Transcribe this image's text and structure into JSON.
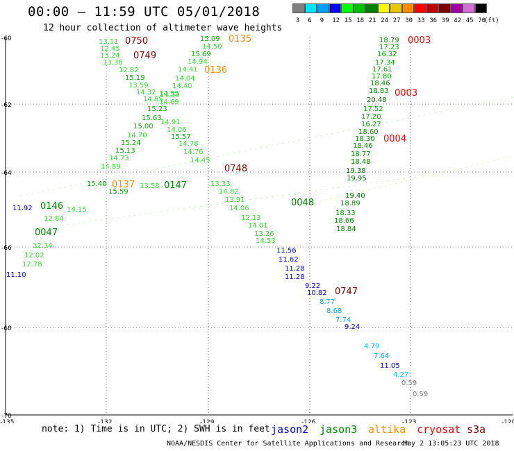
{
  "header": {
    "title": "00:00 — 11:59 UTC 05/01/2018",
    "subtitle": "12 hour collection of altimeter wave heights"
  },
  "legend": {
    "unit": "(ft)",
    "bins": [
      {
        "label": "3",
        "color": "#808080"
      },
      {
        "label": "6",
        "color": "#00e5ff"
      },
      {
        "label": "9",
        "color": "#00a0ff"
      },
      {
        "label": "12",
        "color": "#0000ff"
      },
      {
        "label": "15",
        "color": "#00ff00"
      },
      {
        "label": "18",
        "color": "#00c000"
      },
      {
        "label": "21",
        "color": "#008000"
      },
      {
        "label": "24",
        "color": "#ffff00"
      },
      {
        "label": "27",
        "color": "#e6c800"
      },
      {
        "label": "30",
        "color": "#ff8c00"
      },
      {
        "label": "33",
        "color": "#ff0000"
      },
      {
        "label": "36",
        "color": "#c00000"
      },
      {
        "label": "39",
        "color": "#800000"
      },
      {
        "label": "42",
        "color": "#a000a0"
      },
      {
        "label": "45",
        "color": "#d070d0"
      },
      {
        "label": "70",
        "color": "#000000"
      }
    ]
  },
  "axes": {
    "lat_labels": [
      "-60",
      "-62",
      "-64",
      "-66",
      "-68",
      "-70"
    ],
    "lon_labels": [
      "-135",
      "-132",
      "-129",
      "-126",
      "-123",
      "-120"
    ]
  },
  "tracks": [
    {
      "id": "jason2_a",
      "labels": [
        {
          "t": "11.92",
          "c": "#0000cc"
        },
        {
          "t": "11.10",
          "c": "#0000cc"
        },
        {
          "t": "11.56",
          "c": "#0000cc"
        },
        {
          "t": "11.62",
          "c": "#0000cc"
        },
        {
          "t": "11.28",
          "c": "#0000cc"
        },
        {
          "t": "11.28",
          "c": "#0000cc"
        },
        {
          "t": "9.22",
          "c": "#0000cc"
        },
        {
          "t": "10.82",
          "c": "#0000cc"
        },
        {
          "t": "8.77",
          "c": "#00aaff"
        },
        {
          "t": "8.68",
          "c": "#00aaff"
        },
        {
          "t": "7.74",
          "c": "#00aaff"
        },
        {
          "t": "9.24",
          "c": "#0000cc"
        },
        {
          "t": "4.79",
          "c": "#00ccff"
        },
        {
          "t": "7.64",
          "c": "#00aaff"
        },
        {
          "t": "11.05",
          "c": "#0000cc"
        },
        {
          "t": "4.27",
          "c": "#00ccff"
        },
        {
          "t": "0.59",
          "c": "#808080"
        },
        {
          "t": "0.59",
          "c": "#808080"
        }
      ]
    },
    {
      "id": "green_labels",
      "labels": [
        {
          "t": "13.11",
          "c": "#33dd33"
        },
        {
          "t": "12.45",
          "c": "#33dd33"
        },
        {
          "t": "13.24",
          "c": "#33dd33"
        },
        {
          "t": "13.36",
          "c": "#33dd33"
        },
        {
          "t": "12.82",
          "c": "#33dd33"
        },
        {
          "t": "15.19",
          "c": "#00aa00"
        },
        {
          "t": "13.59",
          "c": "#33dd33"
        },
        {
          "t": "14.32",
          "c": "#33dd33"
        },
        {
          "t": "14.55",
          "c": "#33dd33"
        },
        {
          "t": "14.85",
          "c": "#33dd33"
        },
        {
          "t": "15.23",
          "c": "#00aa00"
        },
        {
          "t": "15.63",
          "c": "#00aa00"
        },
        {
          "t": "15.00",
          "c": "#00aa00"
        },
        {
          "t": "14.70",
          "c": "#33dd33"
        },
        {
          "t": "15.24",
          "c": "#00aa00"
        },
        {
          "t": "15.13",
          "c": "#00aa00"
        },
        {
          "t": "14.73",
          "c": "#33dd33"
        },
        {
          "t": "14.89",
          "c": "#33dd33"
        },
        {
          "t": "15.09",
          "c": "#00aa00"
        },
        {
          "t": "14.50",
          "c": "#33dd33"
        },
        {
          "t": "15.69",
          "c": "#00aa00"
        },
        {
          "t": "14.94",
          "c": "#33dd33"
        },
        {
          "t": "14.41",
          "c": "#33dd33"
        },
        {
          "t": "14.04",
          "c": "#33dd33"
        },
        {
          "t": "14.40",
          "c": "#33dd33"
        },
        {
          "t": "14.59",
          "c": "#33dd33"
        },
        {
          "t": "14.69",
          "c": "#33dd33"
        },
        {
          "t": "14.91",
          "c": "#33dd33"
        },
        {
          "t": "14.06",
          "c": "#33dd33"
        },
        {
          "t": "15.57",
          "c": "#00aa00"
        },
        {
          "t": "14.78",
          "c": "#33dd33"
        },
        {
          "t": "14.76",
          "c": "#33dd33"
        },
        {
          "t": "14.45",
          "c": "#33dd33"
        },
        {
          "t": "13.33",
          "c": "#33dd33"
        },
        {
          "t": "14.82",
          "c": "#33dd33"
        },
        {
          "t": "13.91",
          "c": "#33dd33"
        },
        {
          "t": "14.06",
          "c": "#33dd33"
        },
        {
          "t": "12.13",
          "c": "#33dd33"
        },
        {
          "t": "14.01",
          "c": "#33dd33"
        },
        {
          "t": "13.26",
          "c": "#33dd33"
        },
        {
          "t": "14.53",
          "c": "#33dd33"
        },
        {
          "t": "15.40",
          "c": "#00aa00"
        },
        {
          "t": "15.59",
          "c": "#00aa00"
        },
        {
          "t": "13.58",
          "c": "#33dd33"
        },
        {
          "t": "14.15",
          "c": "#33dd33"
        },
        {
          "t": "12.84",
          "c": "#33dd33"
        },
        {
          "t": "12.34",
          "c": "#33dd33"
        },
        {
          "t": "12.02",
          "c": "#33dd33"
        },
        {
          "t": "12.78",
          "c": "#33dd33"
        }
      ]
    },
    {
      "id": "dark_green_labels",
      "labels": [
        {
          "t": "18.79",
          "c": "#008800"
        },
        {
          "t": "17.23",
          "c": "#00aa00"
        },
        {
          "t": "16.32",
          "c": "#00aa00"
        },
        {
          "t": "17.34",
          "c": "#00aa00"
        },
        {
          "t": "17.61",
          "c": "#00aa00"
        },
        {
          "t": "17.80",
          "c": "#00aa00"
        },
        {
          "t": "18.46",
          "c": "#008800"
        },
        {
          "t": "18.83",
          "c": "#008800"
        },
        {
          "t": "20.48",
          "c": "#006600"
        },
        {
          "t": "17.52",
          "c": "#00aa00"
        },
        {
          "t": "17.20",
          "c": "#00aa00"
        },
        {
          "t": "16.27",
          "c": "#00aa00"
        },
        {
          "t": "18.60",
          "c": "#008800"
        },
        {
          "t": "18.30",
          "c": "#008800"
        },
        {
          "t": "18.46",
          "c": "#008800"
        },
        {
          "t": "18.77",
          "c": "#008800"
        },
        {
          "t": "18.48",
          "c": "#008800"
        },
        {
          "t": "19.95",
          "c": "#006600"
        },
        {
          "t": "19.38",
          "c": "#006600"
        },
        {
          "t": "19.40",
          "c": "#006600"
        },
        {
          "t": "18.89",
          "c": "#008800"
        },
        {
          "t": "18.33",
          "c": "#008800"
        },
        {
          "t": "18.66",
          "c": "#008800"
        },
        {
          "t": "18.84",
          "c": "#008800"
        }
      ]
    },
    {
      "id": "time_labels",
      "labels": [
        {
          "t": "0750",
          "c": "#800000"
        },
        {
          "t": "0749",
          "c": "#800000"
        },
        {
          "t": "0135",
          "c": "#ff8c00"
        },
        {
          "t": "0136",
          "c": "#ff8c00"
        },
        {
          "t": "0003",
          "c": "#ff0000"
        },
        {
          "t": "0003",
          "c": "#ff0000"
        },
        {
          "t": "0004",
          "c": "#ff0000"
        },
        {
          "t": "0748",
          "c": "#800000"
        },
        {
          "t": "0137",
          "c": "#ff8c00"
        },
        {
          "t": "0147",
          "c": "#008800"
        },
        {
          "t": "0146",
          "c": "#008800"
        },
        {
          "t": "0048",
          "c": "#008800"
        },
        {
          "t": "0047",
          "c": "#008800"
        },
        {
          "t": "0747",
          "c": "#800000"
        }
      ]
    }
  ],
  "footer": {
    "note": "note: 1) Time is in UTC; 2) SWH is in feet",
    "satellites": [
      {
        "name": "jason2",
        "color": "#0000cc"
      },
      {
        "name": "jason3",
        "color": "#008800"
      },
      {
        "name": "altika",
        "color": "#ff8c00"
      },
      {
        "name": "cryosat",
        "color": "#ff0000"
      },
      {
        "name": "s3a",
        "color": "#800000"
      }
    ],
    "credit": "NOAA/NESDIS Center for Satellite Applications and Research",
    "timestamp": "May  2 13:05:23 UTC 2018"
  }
}
